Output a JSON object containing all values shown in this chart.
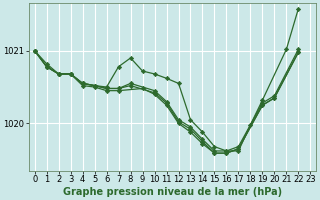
{
  "background_color": "#cce8e8",
  "grid_color": "#ffffff",
  "line_color": "#2d6a2d",
  "marker_color": "#2d6a2d",
  "title": "Graphe pression niveau de la mer (hPa)",
  "title_fontsize": 7,
  "tick_fontsize": 6,
  "xlim": [
    -0.5,
    23.5
  ],
  "ylim": [
    1019.35,
    1021.65
  ],
  "yticks": [
    1020.0,
    1021.0
  ],
  "xticks": [
    0,
    1,
    2,
    3,
    4,
    5,
    6,
    7,
    8,
    9,
    10,
    11,
    12,
    13,
    14,
    15,
    16,
    17,
    18,
    19,
    20,
    21,
    22,
    23
  ],
  "series1_x": [
    0,
    1,
    2,
    3,
    4,
    5,
    6,
    7,
    8,
    9,
    10,
    11,
    12,
    13,
    14,
    15,
    16,
    17,
    18,
    19,
    21,
    22
  ],
  "series1_y": [
    1021.0,
    1020.82,
    1020.68,
    1020.68,
    1020.55,
    1020.52,
    1020.5,
    1020.78,
    1020.9,
    1020.72,
    1020.68,
    1020.62,
    1020.55,
    1020.05,
    1019.88,
    1019.68,
    1019.62,
    1019.62,
    1019.98,
    1020.32,
    1021.02,
    1021.58
  ],
  "series2_x": [
    0,
    1,
    2,
    3,
    4,
    5,
    6,
    7,
    8,
    10,
    11,
    12,
    13,
    14,
    15,
    16,
    17,
    19,
    20,
    22
  ],
  "series2_y": [
    1021.0,
    1020.78,
    1020.68,
    1020.68,
    1020.55,
    1020.52,
    1020.48,
    1020.48,
    1020.55,
    1020.45,
    1020.3,
    1020.05,
    1019.95,
    1019.78,
    1019.62,
    1019.62,
    1019.68,
    1020.28,
    1020.38,
    1021.02
  ],
  "series3_x": [
    0,
    1,
    2,
    3,
    4,
    5,
    6,
    7,
    8,
    10,
    11,
    12,
    13,
    14,
    15,
    16,
    17,
    19,
    20,
    22
  ],
  "series3_y": [
    1021.0,
    1020.78,
    1020.68,
    1020.68,
    1020.55,
    1020.52,
    1020.48,
    1020.48,
    1020.52,
    1020.42,
    1020.28,
    1020.02,
    1019.92,
    1019.75,
    1019.59,
    1019.59,
    1019.65,
    1020.25,
    1020.35,
    1020.98
  ],
  "series4_x": [
    0,
    1,
    2,
    3,
    4,
    5,
    6,
    7,
    9,
    10,
    11,
    12,
    13,
    14,
    15,
    16,
    17,
    19,
    20,
    22
  ],
  "series4_y": [
    1021.0,
    1020.78,
    1020.68,
    1020.68,
    1020.52,
    1020.5,
    1020.45,
    1020.45,
    1020.48,
    1020.4,
    1020.25,
    1020.0,
    1019.88,
    1019.72,
    1019.59,
    1019.59,
    1019.65,
    1020.25,
    1020.35,
    1020.98
  ]
}
